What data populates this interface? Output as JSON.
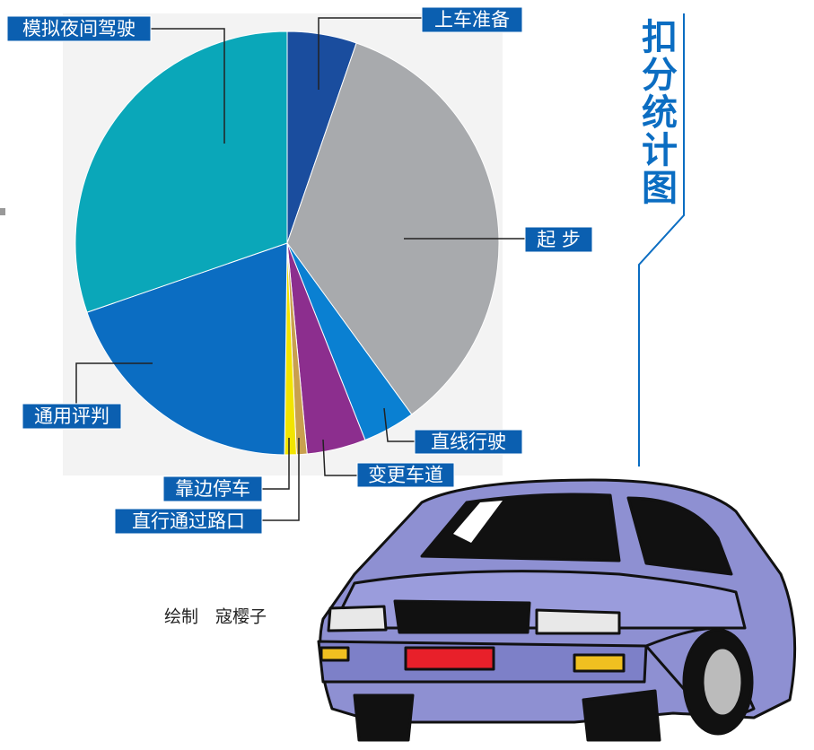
{
  "chart_data": {
    "type": "pie",
    "title": "扣分统计图",
    "note": "绘制　寇樱子",
    "categories": [
      "上车准备",
      "起 步",
      "直线行驶",
      "变更车道",
      "直行通过路口",
      "靠边停车",
      "通用评判",
      "模拟夜间驾驶"
    ],
    "values": [
      5.3,
      34.7,
      4,
      4.5,
      0.8,
      0.9,
      19.5,
      30.3
    ],
    "colors": [
      "#1a4d9e",
      "#a8aaad",
      "#0a80d2",
      "#8c2e8e",
      "#c9a04e",
      "#f2e400",
      "#0b6dc2",
      "#0aa7b9"
    ]
  }
}
